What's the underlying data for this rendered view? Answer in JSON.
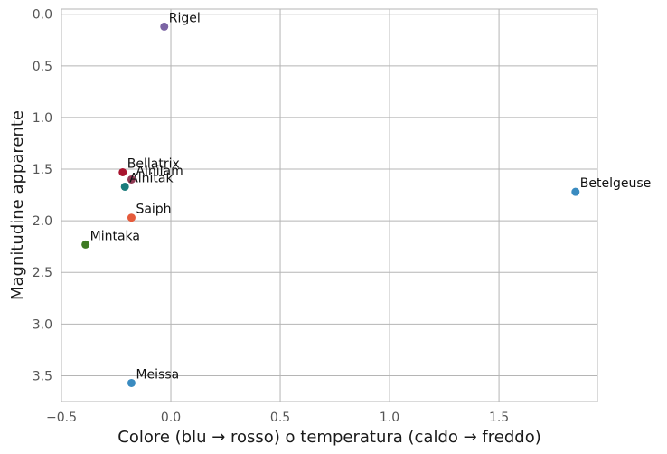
{
  "chart_data": {
    "type": "scatter",
    "title": "",
    "xlabel": "Colore (blu → rosso) o temperatura (caldo → freddo)",
    "ylabel": "Magnitudine apparente",
    "xlim": [
      -0.5,
      1.95
    ],
    "ylim": [
      -0.05,
      3.75
    ],
    "y_inverted": true,
    "grid": true,
    "x_ticks": [
      -0.5,
      0.0,
      0.5,
      1.0,
      1.5
    ],
    "x_tick_labels": [
      "−0.5",
      "0.0",
      "0.5",
      "1.0",
      "1.5"
    ],
    "y_ticks": [
      0.0,
      0.5,
      1.0,
      1.5,
      2.0,
      2.5,
      3.0,
      3.5
    ],
    "y_tick_labels": [
      "0.0",
      "0.5",
      "1.0",
      "1.5",
      "2.0",
      "2.5",
      "3.0",
      "3.5"
    ],
    "points": [
      {
        "label": "Rigel",
        "x": -0.03,
        "y": 0.12,
        "color": "#7b64a4"
      },
      {
        "label": "Betelgeuse",
        "x": 1.85,
        "y": 1.72,
        "color": "#3a8bc0"
      },
      {
        "label": "Bellatrix",
        "x": -0.22,
        "y": 1.53,
        "color": "#a8142f"
      },
      {
        "label": "Alnilam",
        "x": -0.18,
        "y": 1.6,
        "color": "#8f3a55"
      },
      {
        "label": "Alnitak",
        "x": -0.21,
        "y": 1.67,
        "color": "#1b7c7c"
      },
      {
        "label": "Saiph",
        "x": -0.18,
        "y": 1.97,
        "color": "#e55b3c"
      },
      {
        "label": "Mintaka",
        "x": -0.39,
        "y": 2.23,
        "color": "#3d7a22"
      },
      {
        "label": "Meissa",
        "x": -0.18,
        "y": 3.57,
        "color": "#3a8bc0"
      }
    ]
  }
}
